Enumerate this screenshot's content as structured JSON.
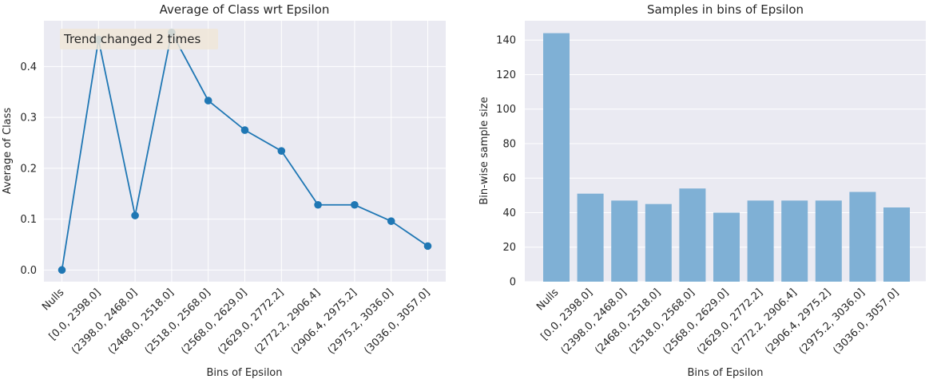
{
  "chart_data": [
    {
      "type": "line",
      "title": "Average of Class wrt Epsilon",
      "xlabel": "Bins of Epsilon",
      "ylabel": "Average of Class",
      "categories": [
        "Nulls",
        "[0.0,  2398.0]",
        "(2398.0, 2468.0]",
        "(2468.0, 2518.0]",
        "(2518.0, 2568.0]",
        "(2568.0, 2629.0]",
        "(2629.0, 2772.2]",
        "(2772.2, 2906.4]",
        "(2906.4, 2975.2]",
        "(2975.2, 3036.0]",
        "(3036.0, 3057.0]"
      ],
      "values": [
        0.0,
        0.453,
        0.107,
        0.467,
        0.333,
        0.275,
        0.234,
        0.128,
        0.128,
        0.096,
        0.047
      ],
      "ylim": [
        -0.023,
        0.49
      ],
      "yticks": [
        0.0,
        0.1,
        0.2,
        0.3,
        0.4
      ],
      "annotation": "Trend changed 2 times",
      "grid": true,
      "color": "#1f77b4"
    },
    {
      "type": "bar",
      "title": "Samples in bins of Epsilon",
      "xlabel": "Bins of Epsilon",
      "ylabel": "Bin-wise sample size",
      "categories": [
        "Nulls",
        "[0.0,  2398.0]",
        "(2398.0, 2468.0]",
        "(2468.0, 2518.0]",
        "(2518.0, 2568.0]",
        "(2568.0, 2629.0]",
        "(2629.0, 2772.2]",
        "(2772.2, 2906.4]",
        "(2906.4, 2975.2]",
        "(2975.2, 3036.0]",
        "(3036.0, 3057.0]"
      ],
      "values": [
        144,
        51,
        47,
        45,
        54,
        40,
        47,
        47,
        47,
        52,
        43
      ],
      "ylim": [
        0,
        151.2
      ],
      "yticks": [
        0,
        20,
        40,
        60,
        80,
        100,
        120,
        140
      ],
      "grid": true,
      "color": "#7fb0d5"
    }
  ]
}
